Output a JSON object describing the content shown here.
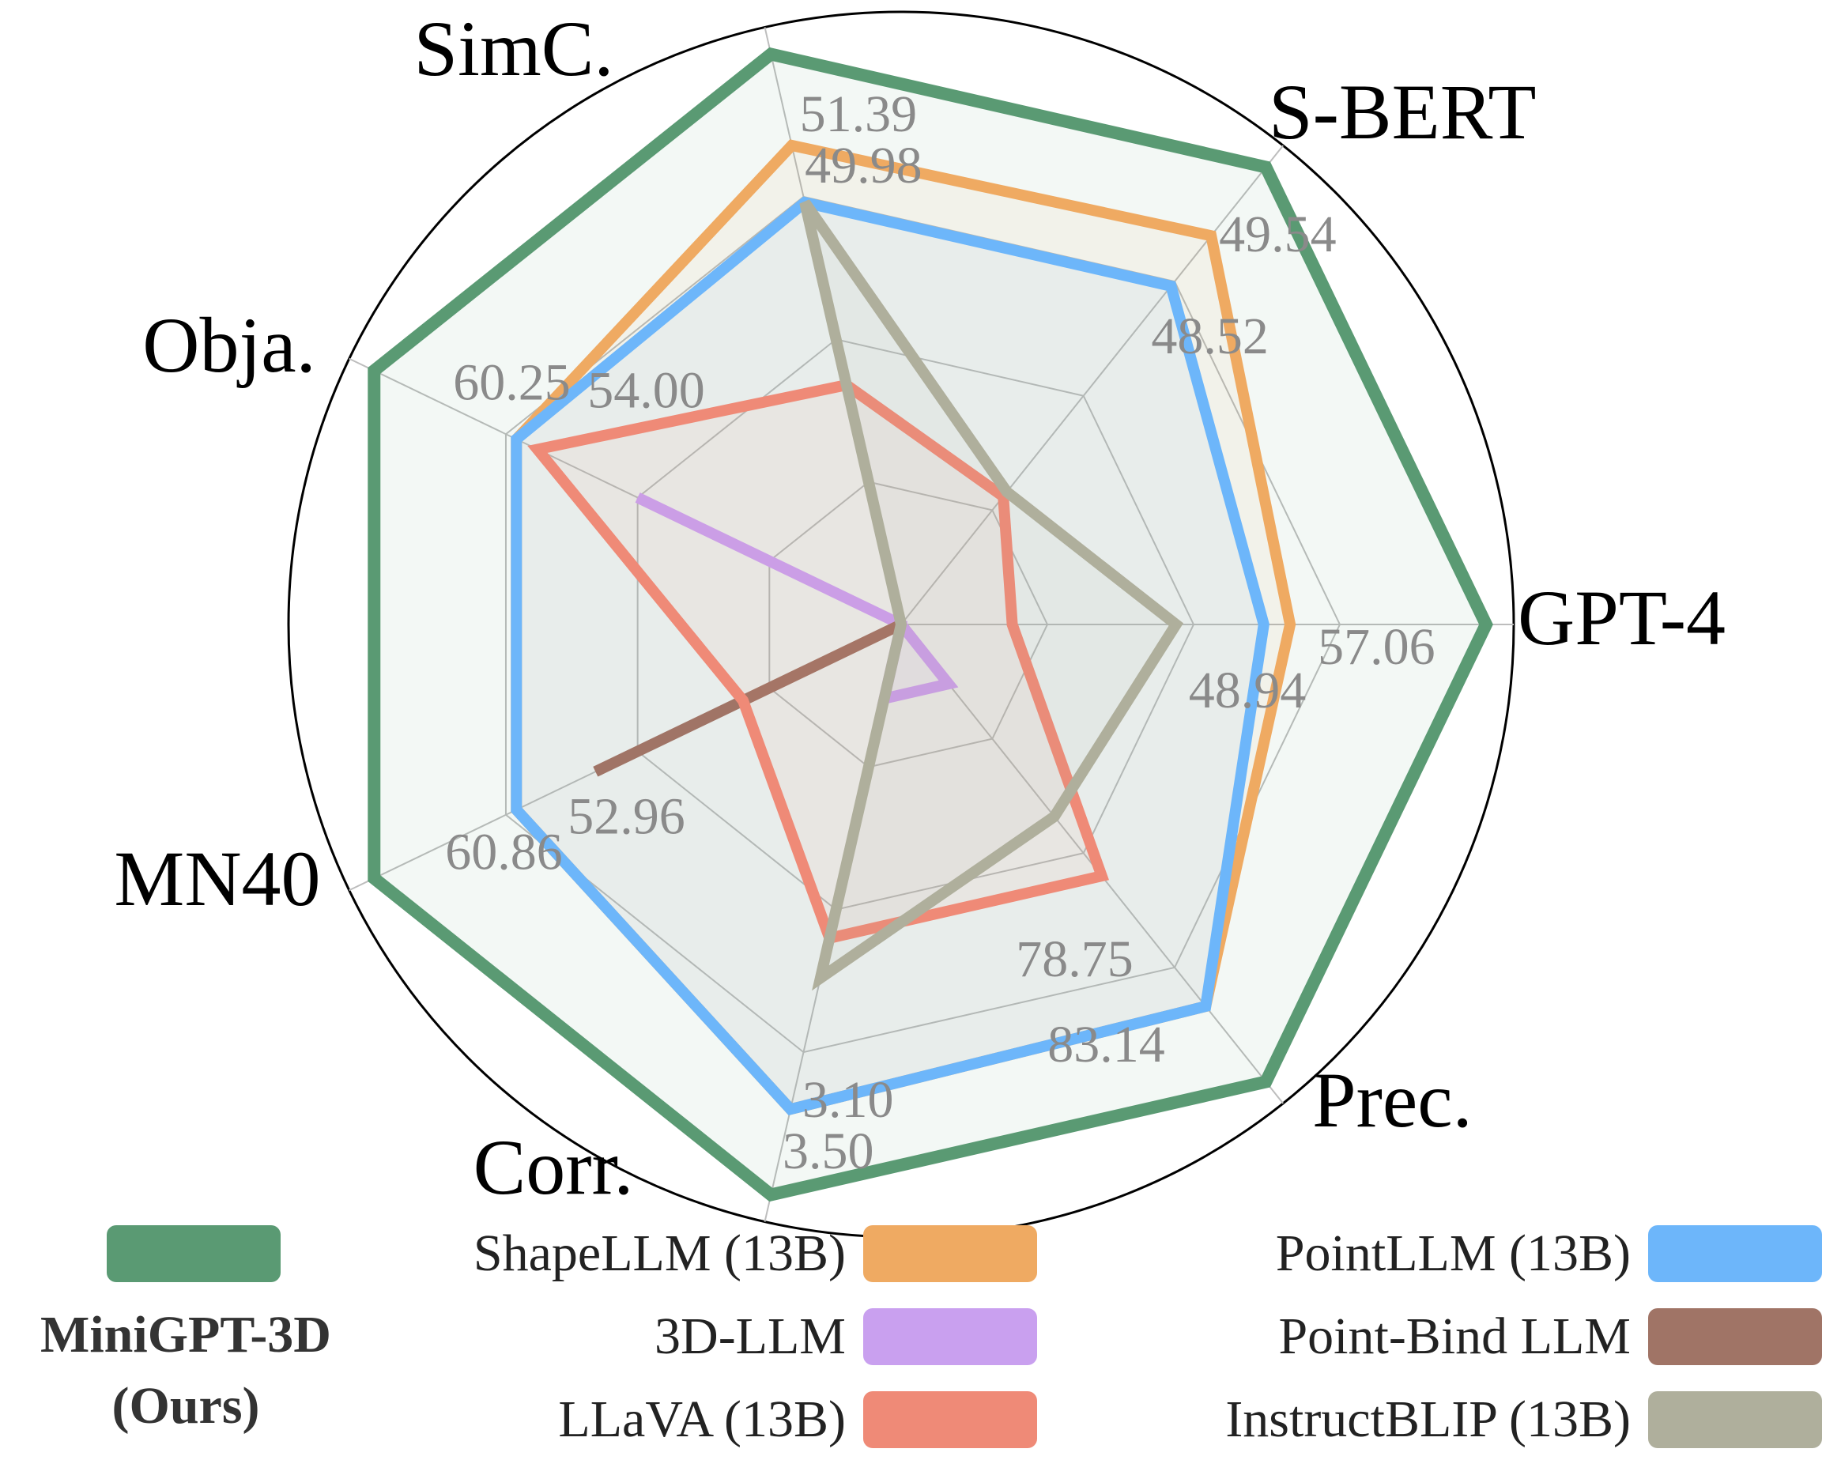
{
  "chart_data": {
    "type": "radar",
    "axes": [
      "GPT-4",
      "S-BERT",
      "SimC.",
      "Obja.",
      "MN40",
      "Corr.",
      "Prec."
    ],
    "series": [
      {
        "name": "MiniGPT-3D",
        "name_note": "(Ours)",
        "color": "#5a9a73",
        "values": [
          1.0,
          1.0,
          1.0,
          1.0,
          1.0,
          1.0,
          1.0
        ]
      },
      {
        "name": "ShapeLLM (13B)",
        "color": "#efaa62",
        "values": [
          0.665,
          0.85,
          0.84,
          0.73,
          0.73,
          0.85,
          0.835
        ]
      },
      {
        "name": "PointLLM (13B)",
        "color": "#6db6fa",
        "values": [
          0.62,
          0.74,
          0.74,
          0.73,
          0.73,
          0.85,
          0.835
        ]
      },
      {
        "name": "3D-LLM",
        "color": "#c9a0ef",
        "values": [
          0.0,
          0.0,
          0.0,
          0.5,
          0.0,
          0.13,
          0.13
        ]
      },
      {
        "name": "Point-Bind LLM",
        "color": "#a07466",
        "values": [
          0.0,
          0.0,
          0.0,
          0.0,
          0.58,
          0.0,
          0.0
        ]
      },
      {
        "name": "LLaVA (13B)",
        "color": "#ef8a77",
        "values": [
          0.19,
          0.28,
          0.42,
          0.69,
          0.3,
          0.55,
          0.55
        ]
      },
      {
        "name": "InstructBLIP (13B)",
        "color": "#afaf9c",
        "values": [
          0.47,
          0.29,
          0.74,
          0.0,
          0.0,
          0.62,
          0.42
        ]
      }
    ],
    "value_labels": [
      {
        "text": "57.06",
        "axis": 0,
        "series": "ShapeLLM (13B)"
      },
      {
        "text": "48.94",
        "axis": 0,
        "series": "PointLLM (13B)"
      },
      {
        "text": "49.54",
        "axis": 1,
        "series": "ShapeLLM (13B)"
      },
      {
        "text": "48.52",
        "axis": 1,
        "series": "PointLLM (13B)"
      },
      {
        "text": "51.39",
        "axis": 2,
        "series": "ShapeLLM (13B)"
      },
      {
        "text": "49.98",
        "axis": 2,
        "series": "PointLLM (13B)"
      },
      {
        "text": "60.25",
        "axis": 3,
        "series": "ShapeLLM (13B)"
      },
      {
        "text": "54.00",
        "axis": 3,
        "series": "PointLLM (13B)"
      },
      {
        "text": "60.86",
        "axis": 4,
        "series": "ShapeLLM (13B)"
      },
      {
        "text": "52.96",
        "axis": 4,
        "series": "PointLLM (13B)"
      },
      {
        "text": "3.50",
        "axis": 5,
        "series": "ShapeLLM (13B)"
      },
      {
        "text": "3.10",
        "axis": 5,
        "series": "PointLLM (13B)"
      },
      {
        "text": "83.14",
        "axis": 6,
        "series": "ShapeLLM (13B)"
      },
      {
        "text": "78.75",
        "axis": 6,
        "series": "PointLLM (13B)"
      }
    ],
    "legend_placement": "bottom",
    "grid": true
  }
}
